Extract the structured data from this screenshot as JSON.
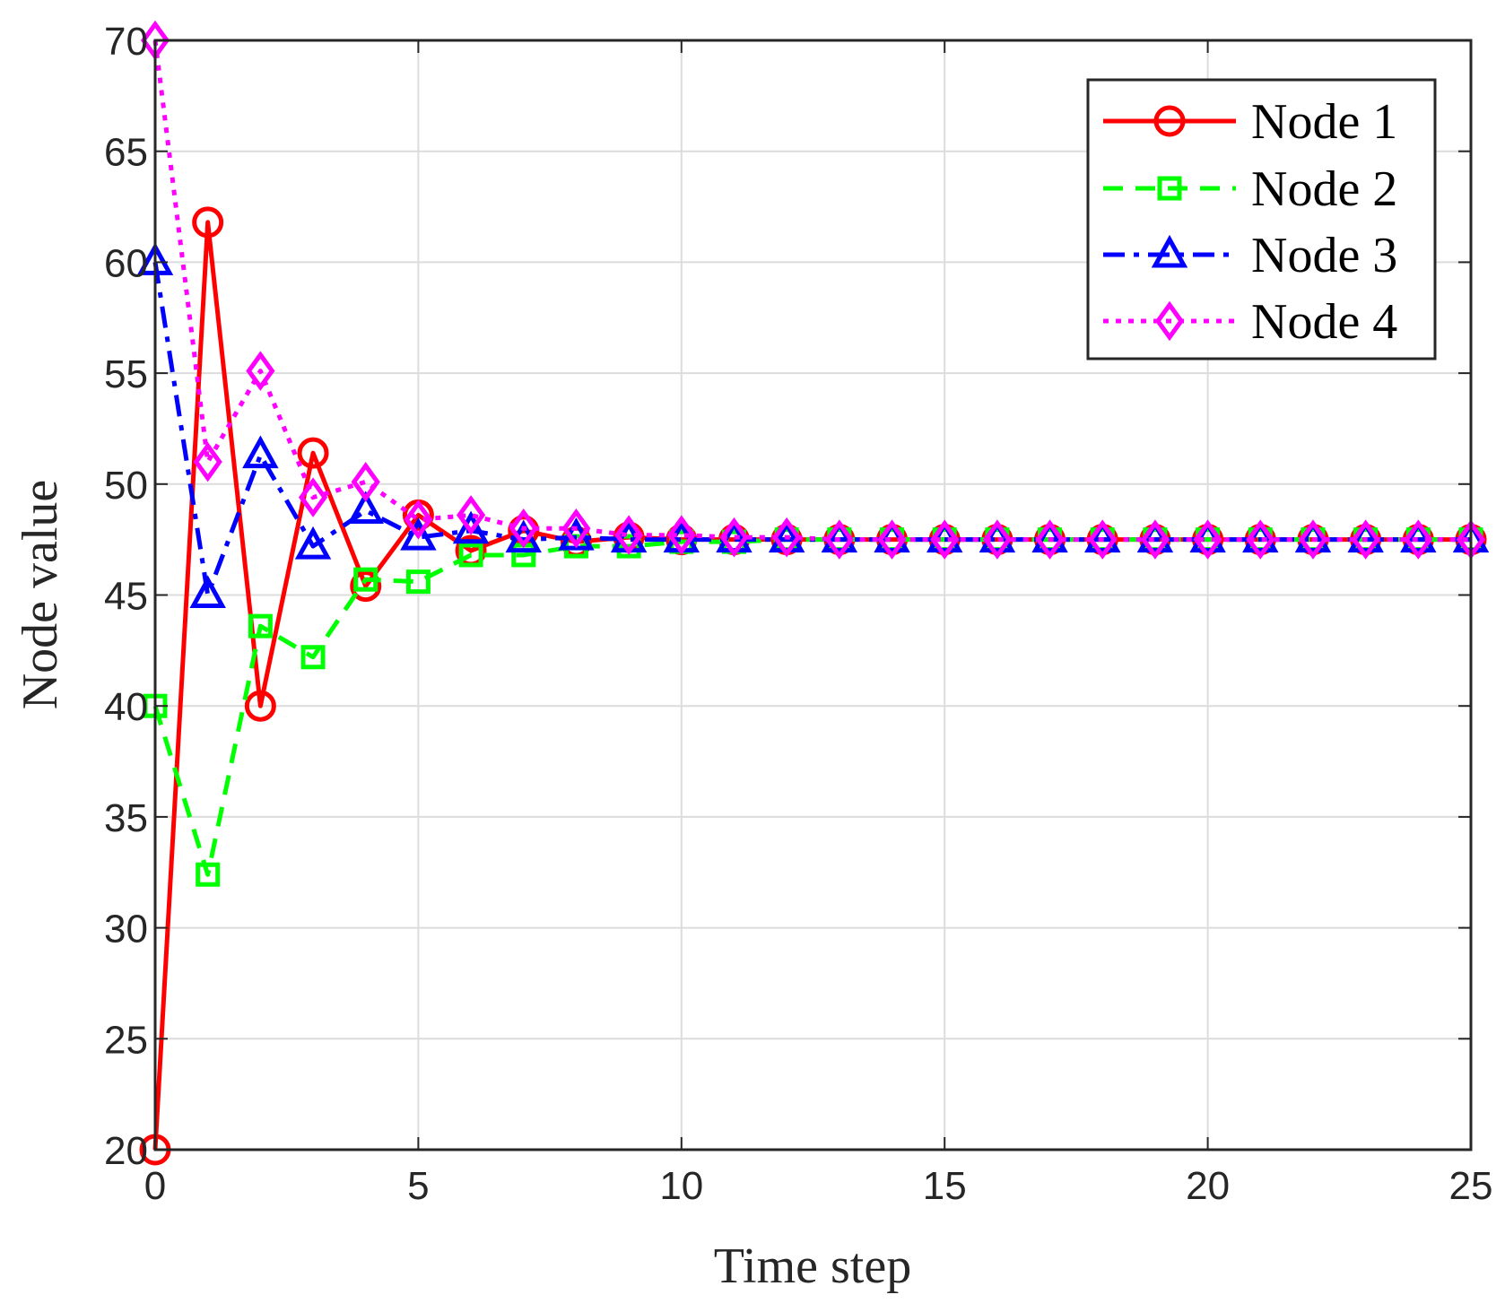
{
  "chart_data": {
    "type": "line",
    "title": "",
    "xlabel": "Time step",
    "ylabel": "Node value",
    "xlim": [
      0,
      25
    ],
    "ylim": [
      20,
      70
    ],
    "xticks": [
      0,
      5,
      10,
      15,
      20,
      25
    ],
    "yticks": [
      20,
      25,
      30,
      35,
      40,
      45,
      50,
      55,
      60,
      65,
      70
    ],
    "xtick_labels": [
      "0",
      "5",
      "10",
      "15",
      "20",
      "25"
    ],
    "ytick_labels": [
      "20",
      "25",
      "30",
      "35",
      "40",
      "45",
      "50",
      "55",
      "60",
      "65",
      "70"
    ],
    "grid": true,
    "legend_position": "top-right",
    "x": [
      0,
      1,
      2,
      3,
      4,
      5,
      6,
      7,
      8,
      9,
      10,
      11,
      12,
      13,
      14,
      15,
      16,
      17,
      18,
      19,
      20,
      21,
      22,
      23,
      24,
      25
    ],
    "series": [
      {
        "name": "Node 1",
        "color": "#ff0000",
        "line_style": "solid",
        "marker": "circle",
        "values": [
          20,
          61.8,
          40,
          51.4,
          45.4,
          48.6,
          47.0,
          47.9,
          47.4,
          47.6,
          47.5,
          47.5,
          47.5,
          47.5,
          47.5,
          47.5,
          47.5,
          47.5,
          47.5,
          47.5,
          47.5,
          47.5,
          47.5,
          47.5,
          47.5,
          47.5
        ]
      },
      {
        "name": "Node 2",
        "color": "#00ff00",
        "line_style": "dashed",
        "marker": "square",
        "values": [
          40,
          32.4,
          43.6,
          42.2,
          45.7,
          45.6,
          46.8,
          46.8,
          47.2,
          47.2,
          47.4,
          47.4,
          47.5,
          47.5,
          47.5,
          47.5,
          47.5,
          47.5,
          47.5,
          47.5,
          47.5,
          47.5,
          47.5,
          47.5,
          47.5,
          47.5
        ]
      },
      {
        "name": "Node 3",
        "color": "#0000ff",
        "line_style": "dashdot",
        "marker": "triangle",
        "values": [
          60,
          45,
          51.3,
          47.2,
          48.8,
          47.6,
          47.9,
          47.5,
          47.6,
          47.5,
          47.5,
          47.5,
          47.5,
          47.5,
          47.5,
          47.5,
          47.5,
          47.5,
          47.5,
          47.5,
          47.5,
          47.5,
          47.5,
          47.5,
          47.5,
          47.5
        ]
      },
      {
        "name": "Node 4",
        "color": "#ff00ff",
        "line_style": "dotted",
        "marker": "diamond",
        "values": [
          70,
          51,
          55.1,
          49.4,
          50.1,
          48.4,
          48.6,
          48.0,
          48.0,
          47.7,
          47.7,
          47.6,
          47.6,
          47.5,
          47.5,
          47.5,
          47.5,
          47.5,
          47.5,
          47.5,
          47.5,
          47.5,
          47.5,
          47.5,
          47.5,
          47.5
        ]
      }
    ]
  }
}
